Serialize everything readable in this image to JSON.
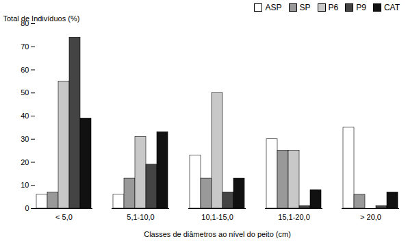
{
  "chart_data": {
    "type": "bar",
    "categories": [
      "< 5,0",
      "5,1-10,0",
      "10,1-15,0",
      "15,1-20,0",
      "> 20,0"
    ],
    "series": [
      {
        "name": "ASP",
        "color": "#ffffff",
        "values": [
          6,
          6,
          23,
          30,
          35
        ]
      },
      {
        "name": "SP",
        "color": "#999999",
        "values": [
          7,
          13,
          13,
          25,
          6
        ]
      },
      {
        "name": "P6",
        "color": "#c8c8c8",
        "values": [
          55,
          31,
          50,
          25,
          0
        ]
      },
      {
        "name": "P9",
        "color": "#444444",
        "values": [
          74,
          19,
          7,
          1,
          1
        ]
      },
      {
        "name": "CAT",
        "color": "#111111",
        "values": [
          39,
          33,
          13,
          8,
          7
        ]
      }
    ],
    "xlabel": "Classes de diâmetros ao nível do peito (cm)",
    "ylabel": "Total de Indivíduos (%)",
    "ylim": [
      0,
      80
    ],
    "yticks": [
      0,
      10,
      20,
      30,
      40,
      50,
      60,
      70,
      80
    ],
    "grid": false,
    "legend": "upper right"
  }
}
